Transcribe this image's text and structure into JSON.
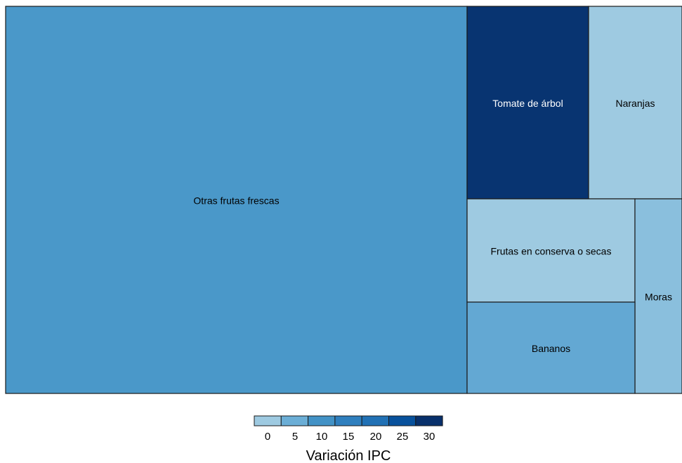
{
  "chart_data": {
    "type": "treemap",
    "tiles": [
      {
        "label": "Otras frutas frescas",
        "value": 9
      },
      {
        "label": "Tomate de árbol",
        "value": 32
      },
      {
        "label": "Naranjas",
        "value": 0
      },
      {
        "label": "Frutas en conserva o secas",
        "value": 0
      },
      {
        "label": "Moras",
        "value": 2
      },
      {
        "label": "Bananos",
        "value": 6
      }
    ],
    "legend": {
      "title": "Variación IPC",
      "ticks": [
        "0",
        "5",
        "10",
        "15",
        "20",
        "25",
        "30"
      ],
      "bin_colors": [
        "#9ecae1",
        "#6baed6",
        "#4292c6",
        "#2f7fbe",
        "#2171b5",
        "#08519c",
        "#08306b"
      ],
      "placement": "bottom"
    }
  }
}
